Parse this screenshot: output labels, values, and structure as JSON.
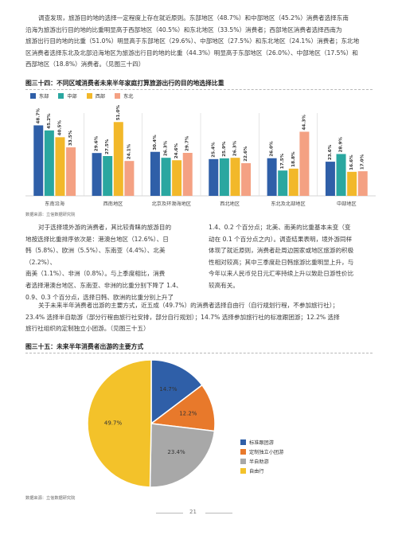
{
  "intro_paragraph": [
    "调查发现，旅游目的地的选择一定程度上存在就近原则。东部地区（48.7%）和中部地区（45.2%）消费者选择东南",
    "沿海为旅游出行目的地的比重明显高于西部地区（40.5%）和东北地区（33.5%）消费者；西部地区消费者选择西南为",
    "旅游出行目的地的比重（51.0%）明显高于东部地区（29.6%）、中部地区（27.5%）和东北地区（24.1%）消费者；东北地",
    "区消费者选择东北及北部沿海地区为旅游出行目的地的比重（44.3%）明显高于东部地区（26.0%）、中部地区（17.5%）和",
    "西部地区（18.8%）消费者。（见图三十四）"
  ],
  "figure34": {
    "title": "图三十四：不同区域消费者未来半年家庭打算旅游出行的目的地选择比重",
    "source": "数据来源：立信数据研究院",
    "series": [
      {
        "name": "东部",
        "color": "#2f5fa8"
      },
      {
        "name": "中部",
        "color": "#2aa7a0"
      },
      {
        "name": "西部",
        "color": "#f2b82a"
      },
      {
        "name": "东北",
        "color": "#f4a183"
      }
    ],
    "chart_data": {
      "type": "bar",
      "categories": [
        "东南沿海",
        "西南地区",
        "北京及环渤海地区",
        "西北地区",
        "东北及北部地区",
        "中部地区"
      ],
      "series": [
        {
          "name": "东部",
          "values": [
            48.7,
            29.6,
            30.4,
            25.4,
            26.0,
            23.6
          ]
        },
        {
          "name": "中部",
          "values": [
            45.2,
            27.5,
            26.3,
            25.9,
            17.5,
            28.9
          ]
        },
        {
          "name": "西部",
          "values": [
            40.5,
            51.0,
            24.6,
            26.3,
            18.8,
            16.6
          ]
        },
        {
          "name": "东北",
          "values": [
            33.5,
            24.1,
            29.7,
            22.6,
            44.3,
            17.0
          ]
        }
      ],
      "value_labels": [
        [
          "48.7%",
          "45.2%",
          "40.5%",
          "33.5%"
        ],
        [
          "29.6%",
          "27.5%",
          "51.0%",
          "24.1%"
        ],
        [
          "30.4%",
          "26.3%",
          "24.6%",
          "29.7%"
        ],
        [
          "25.4%",
          "25.9%",
          "26.3%",
          "22.6%"
        ],
        [
          "26.0%",
          "17.5%",
          "18.8%",
          "44.3%"
        ],
        [
          "23.6%",
          "28.9%",
          "16.6%",
          "17.0%"
        ]
      ],
      "ylim": [
        0,
        55
      ],
      "legend_position": "top-left"
    }
  },
  "middle_paragraph": {
    "left": [
      "对于选择境外游的消费者，其比较青睐的旅游目的",
      "地按选择比重排序依次是：港澳台地区（12.6%）、日",
      "韩（5.8%）、欧洲（5.5%）、东南亚（4.4%）、北美（2.2%）、",
      "南美（1.1%）、非洲（0.8%）。与上季度相比，消费",
      "者选择港澳台地区、东南亚、非洲的比重分别下降了 1.4、",
      "0.9、0.3 个百分点，选择日韩、欧洲的比重分别上升了"
    ],
    "right": [
      "1.4、0.2 个百分点；北美、南美的比重基本未变（变",
      "动在 0.1 个百分点之内）。调查结果表明，境外游同样",
      "体现了就近原则，消费者赴周边国家或地区旅游的积极",
      "性相对较高；其中三季度赴日韩旅游比重明显上升，与",
      "今年以来人民币兑日元汇率持续上升以致赴日游性价比",
      "较高有关。"
    ]
  },
  "lower_paragraph": [
    "关于未来半年消费者出游的主要方式，近五成（49.7%）的消费者选择自由行（自行规划行程，不参加旅行社）；",
    "23.4% 选择半自助游（部分行程由旅行社安排，部分自行规划）；14.7% 选择参加旅行社的标准跟团游；12.2% 选择",
    "旅行社组织的定制独立小团游。（见图三十五）"
  ],
  "figure35": {
    "title": "图三十五：未来半年消费者出游的主要方式",
    "source": "数据来源：立信数据研究院",
    "chart_data": {
      "type": "pie",
      "labels": [
        "标准跟团游",
        "定制独立小团游",
        "半自助游",
        "自由行"
      ],
      "values": [
        14.7,
        12.2,
        23.4,
        49.7
      ],
      "value_labels": [
        "14.7%",
        "12.2%",
        "23.4%",
        "49.7%"
      ],
      "colors": [
        "#2f5fa8",
        "#e8792b",
        "#a8a8a8",
        "#f3c22a"
      ],
      "legend_position": "right"
    }
  },
  "footer": {
    "page_number": "21"
  }
}
